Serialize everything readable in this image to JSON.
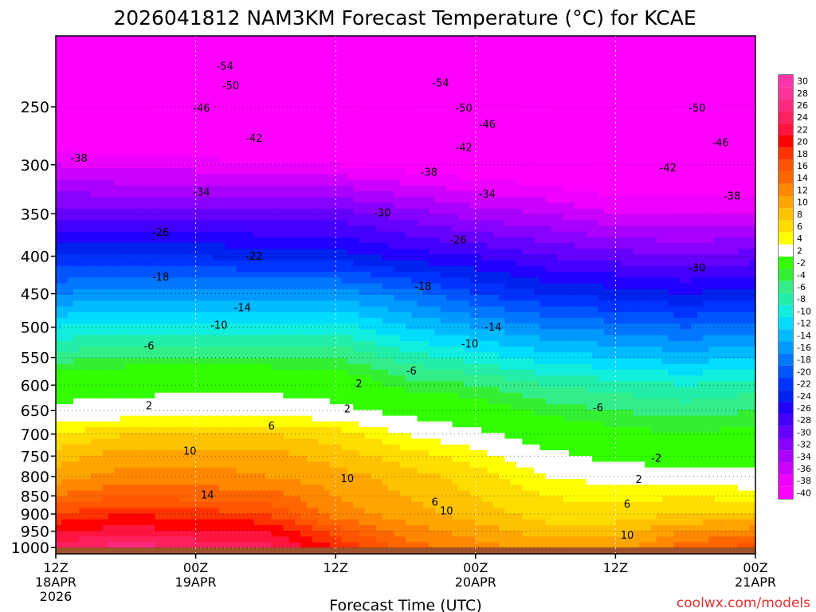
{
  "chart_data": {
    "type": "heatmap",
    "title": "2026041812 NAM3KM Forecast Temperature (°C) for KCAE",
    "xlabel": "Forecast Time (UTC)",
    "ylabel": "",
    "x_ticks": [
      {
        "hour": 0,
        "line1": "12Z",
        "line2": "18APR",
        "line3": "2026"
      },
      {
        "hour": 12,
        "line1": "00Z",
        "line2": "19APR",
        "line3": ""
      },
      {
        "hour": 24,
        "line1": "12Z",
        "line2": "",
        "line3": ""
      },
      {
        "hour": 36,
        "line1": "00Z",
        "line2": "20APR",
        "line3": ""
      },
      {
        "hour": 48,
        "line1": "12Z",
        "line2": "",
        "line3": ""
      },
      {
        "hour": 60,
        "line1": "00Z",
        "line2": "21APR",
        "line3": ""
      }
    ],
    "xlim": [
      0,
      60
    ],
    "y_ticks": [
      250,
      300,
      350,
      400,
      450,
      500,
      550,
      600,
      650,
      700,
      750,
      800,
      850,
      900,
      950,
      1000
    ],
    "ylim": [
      200,
      1020
    ],
    "y_scale": "log",
    "ground_level": 1000,
    "grid": true,
    "credit": "coolwx.com/models",
    "colorbar": {
      "placement": "right",
      "levels": [
        {
          "label": "30",
          "color": "#ff33aa"
        },
        {
          "label": "28",
          "color": "#ff3399"
        },
        {
          "label": "26",
          "color": "#ff2a80"
        },
        {
          "label": "24",
          "color": "#ff2060"
        },
        {
          "label": "22",
          "color": "#ff1440"
        },
        {
          "label": "20",
          "color": "#ff0000"
        },
        {
          "label": "18",
          "color": "#ff3300"
        },
        {
          "label": "16",
          "color": "#ff5500"
        },
        {
          "label": "14",
          "color": "#ff6600"
        },
        {
          "label": "12",
          "color": "#ff8800"
        },
        {
          "label": "10",
          "color": "#ffa500"
        },
        {
          "label": "8",
          "color": "#ffc200"
        },
        {
          "label": "6",
          "color": "#ffdd00"
        },
        {
          "label": "4",
          "color": "#ffff00"
        },
        {
          "label": "2",
          "color": "#ffffff"
        },
        {
          "label": "-2",
          "color": "#33ff00"
        },
        {
          "label": "-4",
          "color": "#33ee33"
        },
        {
          "label": "-6",
          "color": "#33ee88"
        },
        {
          "label": "-8",
          "color": "#22eeaa"
        },
        {
          "label": "-10",
          "color": "#11eedd"
        },
        {
          "label": "-12",
          "color": "#00ddff"
        },
        {
          "label": "-14",
          "color": "#00bbff"
        },
        {
          "label": "-16",
          "color": "#0099ff"
        },
        {
          "label": "-18",
          "color": "#0077ff"
        },
        {
          "label": "-20",
          "color": "#0055ff"
        },
        {
          "label": "-22",
          "color": "#0033ff"
        },
        {
          "label": "-24",
          "color": "#0022ee"
        },
        {
          "label": "-26",
          "color": "#2200ff"
        },
        {
          "label": "-28",
          "color": "#4400ff"
        },
        {
          "label": "-30",
          "color": "#6600ff"
        },
        {
          "label": "-32",
          "color": "#8800ff"
        },
        {
          "label": "-34",
          "color": "#aa00ff"
        },
        {
          "label": "-36",
          "color": "#cc00ff"
        },
        {
          "label": "-38",
          "color": "#ee00ff"
        },
        {
          "label": "-40",
          "color": "#ff00ff"
        }
      ]
    },
    "temperature_profiles": [
      {
        "hour": 0,
        "t": {
          "200": -56,
          "250": -47,
          "300": -38,
          "350": -31,
          "400": -24,
          "450": -18,
          "500": -12,
          "550": -7,
          "600": -1,
          "650": 2,
          "700": 6,
          "750": 9,
          "800": 11,
          "850": 14,
          "900": 18,
          "950": 22,
          "1000": 25
        }
      },
      {
        "hour": 6,
        "t": {
          "200": -57,
          "250": -47,
          "300": -39,
          "350": -31,
          "400": -24,
          "450": -17,
          "500": -11,
          "550": -6,
          "600": 0,
          "650": 2,
          "700": 8,
          "750": 11,
          "800": 13,
          "850": 16,
          "900": 20,
          "950": 23,
          "1000": 27
        }
      },
      {
        "hour": 12,
        "t": {
          "200": -56,
          "250": -47,
          "300": -39,
          "350": -31,
          "400": -24,
          "450": -17,
          "500": -11,
          "550": -6,
          "600": 0,
          "650": 3,
          "700": 8,
          "750": 11,
          "800": 13,
          "850": 15,
          "900": 19,
          "950": 22,
          "1000": 26
        }
      },
      {
        "hour": 18,
        "t": {
          "200": -56,
          "250": -47,
          "300": -40,
          "350": -31,
          "400": -25,
          "450": -17,
          "500": -11,
          "550": -6,
          "600": 0,
          "650": 3,
          "700": 8,
          "750": 11,
          "800": 12,
          "850": 15,
          "900": 18,
          "950": 22,
          "1000": 25
        }
      },
      {
        "hour": 24,
        "t": {
          "200": -56,
          "250": -48,
          "300": -40,
          "350": -31,
          "400": -25,
          "450": -17,
          "500": -11,
          "550": -6,
          "600": -1,
          "650": 2,
          "700": 7,
          "750": 9,
          "800": 11,
          "850": 12,
          "900": 13,
          "950": 17,
          "1000": 20
        }
      },
      {
        "hour": 30,
        "t": {
          "200": -57,
          "250": -49,
          "300": -41,
          "350": -33,
          "400": -27,
          "450": -19,
          "500": -14,
          "550": -9,
          "600": -5,
          "650": 0,
          "700": 4,
          "750": 7,
          "800": 9,
          "850": 10,
          "900": 11,
          "950": 13,
          "1000": 15
        }
      },
      {
        "hour": 36,
        "t": {
          "200": -58,
          "250": -50,
          "300": -42,
          "350": -35,
          "400": -28,
          "450": -22,
          "500": -16,
          "550": -11,
          "600": -6,
          "650": -2,
          "700": 2,
          "750": 5,
          "800": 7,
          "850": 8,
          "900": 9,
          "950": 11,
          "1000": 13
        }
      },
      {
        "hour": 42,
        "t": {
          "200": -59,
          "250": -51,
          "300": -43,
          "350": -36,
          "400": -30,
          "450": -24,
          "500": -18,
          "550": -13,
          "600": -8,
          "650": -5,
          "700": -1,
          "750": 2,
          "800": 4,
          "850": 6,
          "900": 7,
          "950": 9,
          "1000": 11
        }
      },
      {
        "hour": 48,
        "t": {
          "200": -59,
          "250": -51,
          "300": -44,
          "350": -38,
          "400": -31,
          "450": -25,
          "500": -19,
          "550": -14,
          "600": -9,
          "650": -6,
          "700": -3,
          "750": 0,
          "800": 3,
          "850": 5,
          "900": 7,
          "950": 9,
          "1000": 11
        }
      },
      {
        "hour": 54,
        "t": {
          "200": -59,
          "250": -51,
          "300": -44,
          "350": -38,
          "400": -32,
          "450": -26,
          "500": -20,
          "550": -15,
          "600": -10,
          "650": -7,
          "700": -4,
          "750": -1,
          "800": 3,
          "850": 6,
          "900": 8,
          "950": 12,
          "1000": 15
        }
      },
      {
        "hour": 60,
        "t": {
          "200": -59,
          "250": -52,
          "300": -45,
          "350": -38,
          "400": -31,
          "450": -25,
          "500": -19,
          "550": -14,
          "600": -9,
          "650": -6,
          "700": -3,
          "750": 0,
          "800": 2,
          "850": 5,
          "900": 8,
          "950": 13,
          "1000": 17
        }
      }
    ],
    "contour_labels": [
      {
        "text": "-54",
        "hour": 14.5,
        "p": 220
      },
      {
        "text": "-54",
        "hour": 33,
        "p": 232
      },
      {
        "text": "-50",
        "hour": 15,
        "p": 234
      },
      {
        "text": "-50",
        "hour": 35,
        "p": 251
      },
      {
        "text": "-50",
        "hour": 55,
        "p": 251
      },
      {
        "text": "-46",
        "hour": 12.5,
        "p": 251
      },
      {
        "text": "-46",
        "hour": 37,
        "p": 264
      },
      {
        "text": "-46",
        "hour": 57,
        "p": 280
      },
      {
        "text": "-42",
        "hour": 17,
        "p": 276
      },
      {
        "text": "-42",
        "hour": 35,
        "p": 284
      },
      {
        "text": "-42",
        "hour": 52.5,
        "p": 303
      },
      {
        "text": "-38",
        "hour": 2,
        "p": 294
      },
      {
        "text": "-38",
        "hour": 32,
        "p": 307
      },
      {
        "text": "-38",
        "hour": 58,
        "p": 331
      },
      {
        "text": "-34",
        "hour": 12.5,
        "p": 327
      },
      {
        "text": "-34",
        "hour": 37,
        "p": 329
      },
      {
        "text": "-30",
        "hour": 28,
        "p": 349
      },
      {
        "text": "-30",
        "hour": 55,
        "p": 415
      },
      {
        "text": "-26",
        "hour": 9,
        "p": 371
      },
      {
        "text": "-26",
        "hour": 34.5,
        "p": 380
      },
      {
        "text": "-22",
        "hour": 17,
        "p": 400
      },
      {
        "text": "-18",
        "hour": 9,
        "p": 427
      },
      {
        "text": "-18",
        "hour": 31.5,
        "p": 440
      },
      {
        "text": "-14",
        "hour": 16,
        "p": 470
      },
      {
        "text": "-14",
        "hour": 37.5,
        "p": 500
      },
      {
        "text": "-10",
        "hour": 14,
        "p": 497
      },
      {
        "text": "-10",
        "hour": 35.5,
        "p": 527
      },
      {
        "text": "-6",
        "hour": 8,
        "p": 530
      },
      {
        "text": "-6",
        "hour": 30.5,
        "p": 574
      },
      {
        "text": "-6",
        "hour": 46.5,
        "p": 644
      },
      {
        "text": "-2",
        "hour": 51.5,
        "p": 755
      },
      {
        "text": "2",
        "hour": 26,
        "p": 597
      },
      {
        "text": "2",
        "hour": 8,
        "p": 640
      },
      {
        "text": "2",
        "hour": 25,
        "p": 646
      },
      {
        "text": "2",
        "hour": 50,
        "p": 807
      },
      {
        "text": "6",
        "hour": 18.5,
        "p": 682
      },
      {
        "text": "6",
        "hour": 32.5,
        "p": 867
      },
      {
        "text": "6",
        "hour": 49,
        "p": 872
      },
      {
        "text": "10",
        "hour": 11.5,
        "p": 738
      },
      {
        "text": "10",
        "hour": 25,
        "p": 805
      },
      {
        "text": "10",
        "hour": 33.5,
        "p": 891
      },
      {
        "text": "10",
        "hour": 49,
        "p": 962
      },
      {
        "text": "14",
        "hour": 13,
        "p": 847
      }
    ]
  }
}
